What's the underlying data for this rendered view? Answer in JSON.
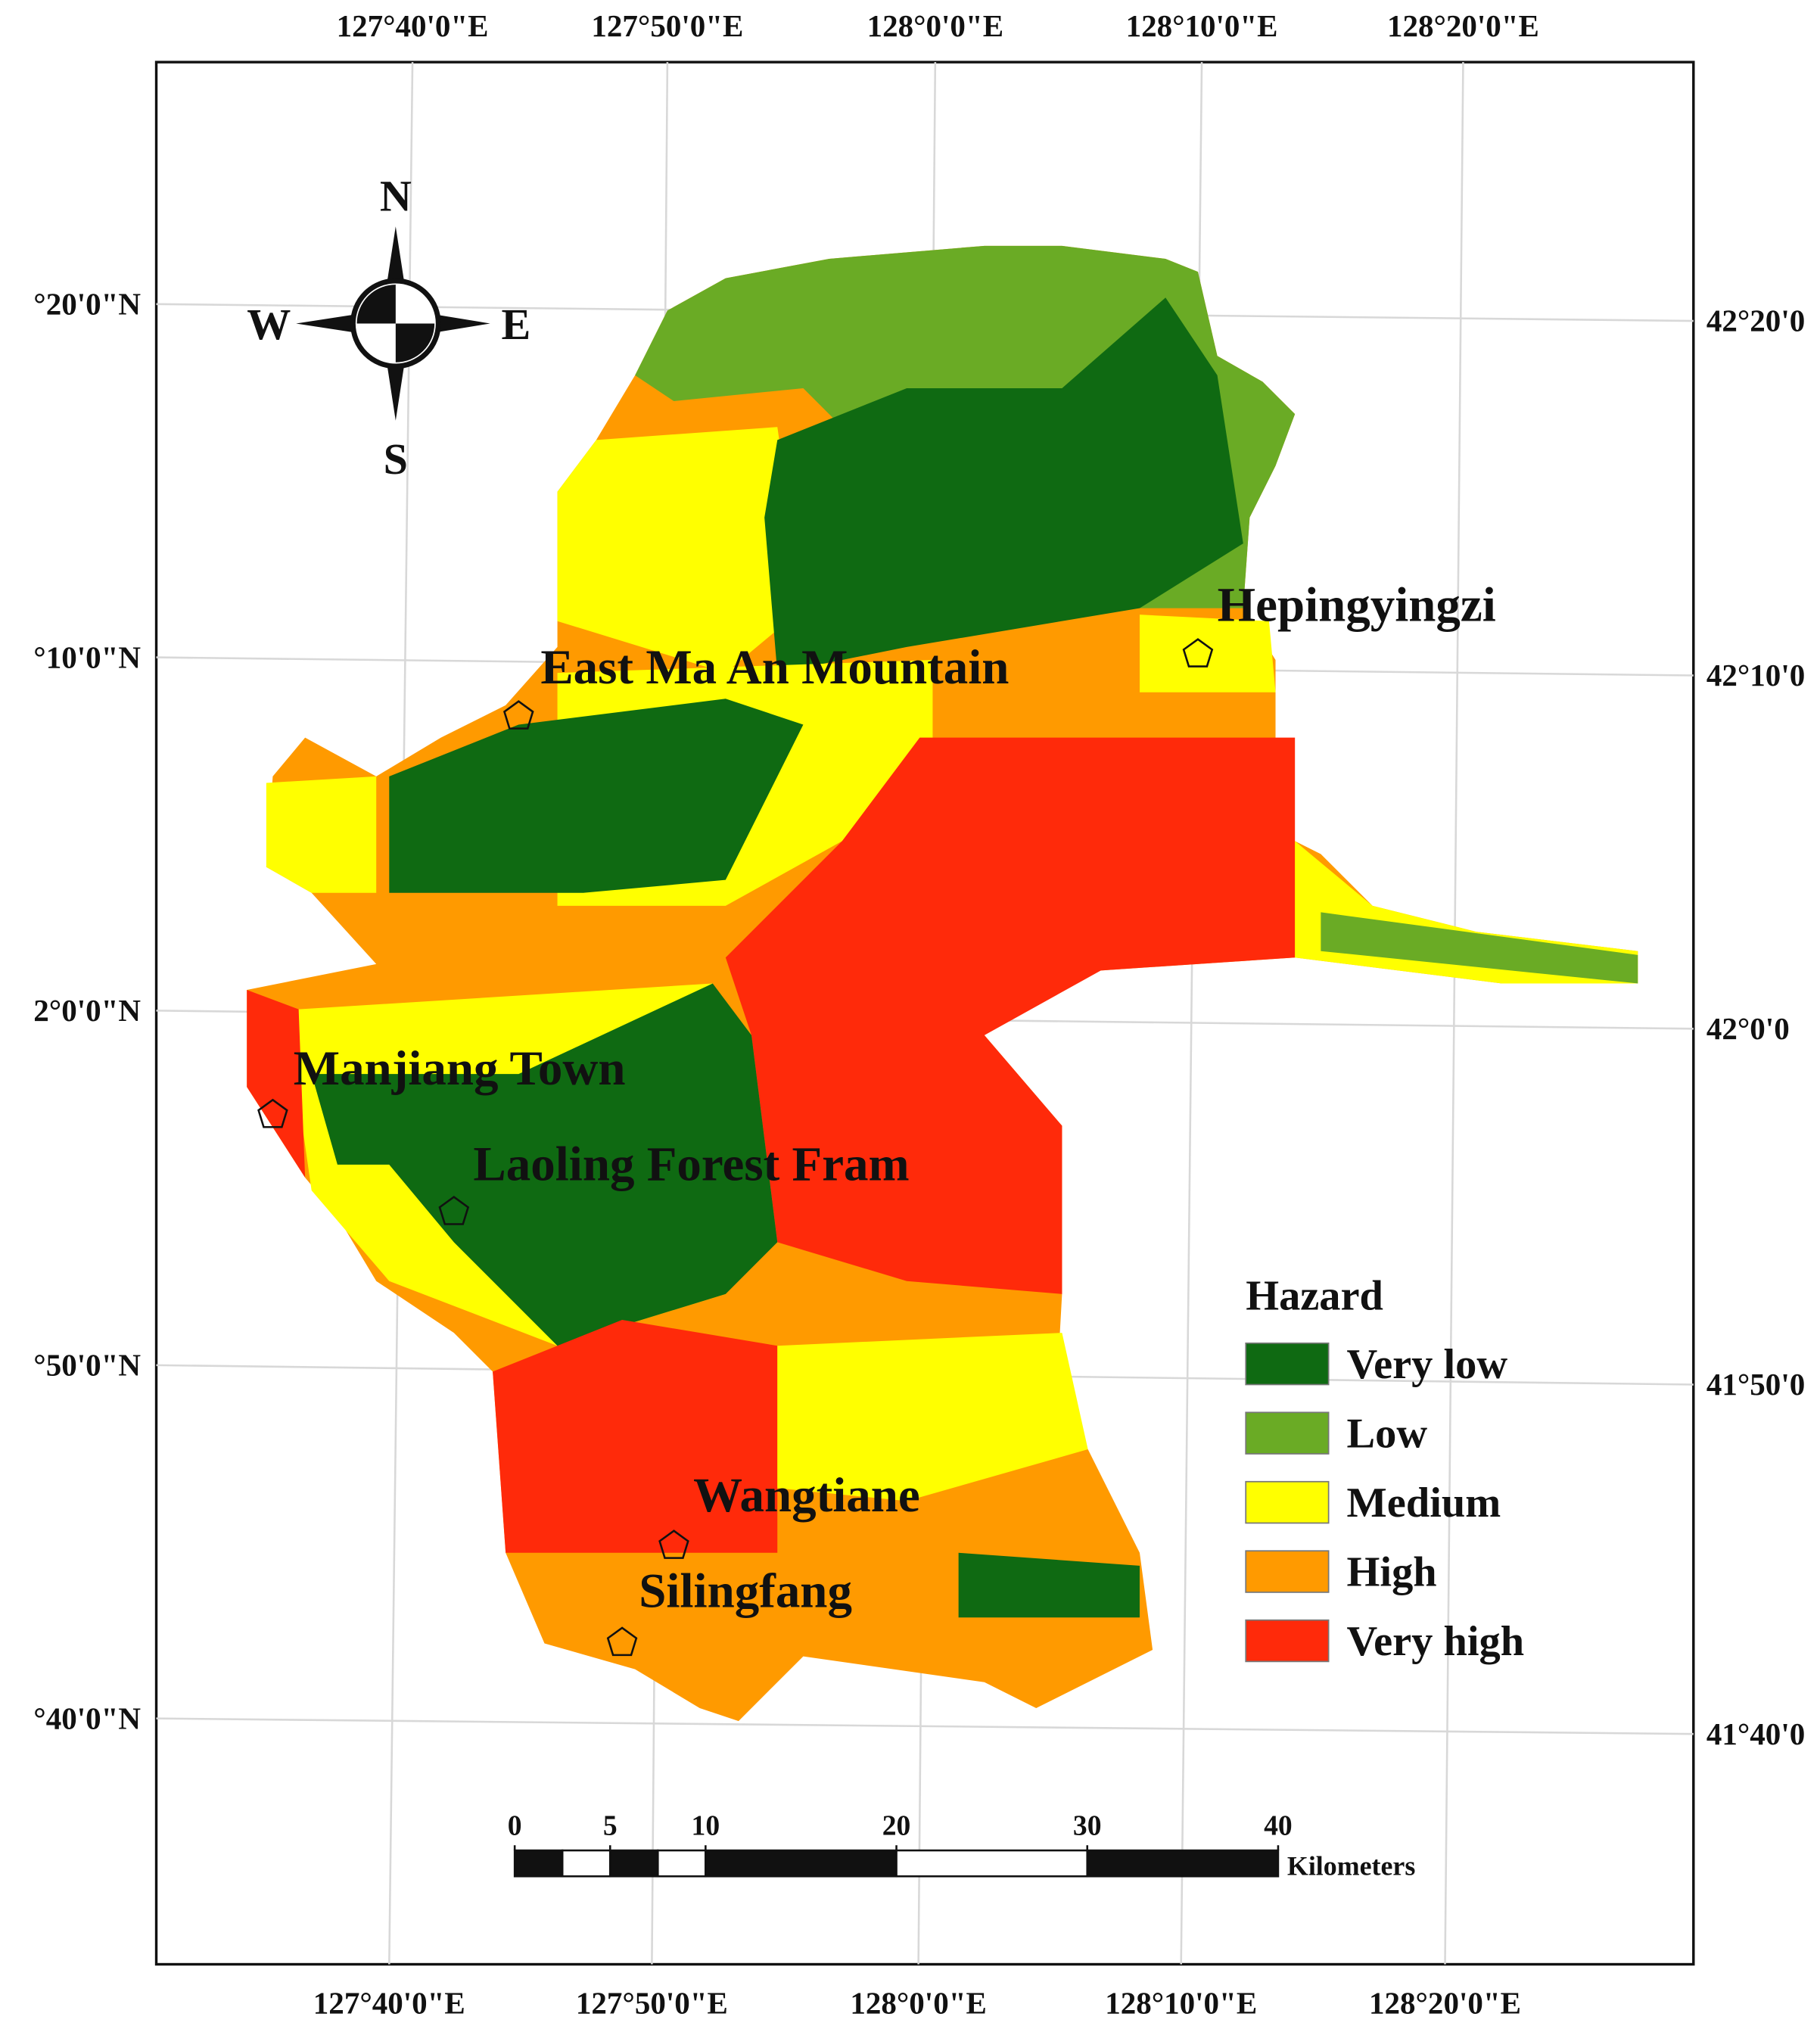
{
  "map": {
    "longitude_labels_top": [
      "127°40'0\"E",
      "127°50'0\"E",
      "128°0'0\"E",
      "128°10'0\"E",
      "128°20'0\"E"
    ],
    "longitude_labels_bottom": [
      "127°40'0\"E",
      "127°50'0\"E",
      "128°0'0\"E",
      "128°10'0\"E",
      "128°20'0\"E"
    ],
    "latitude_labels_left": [
      "°20'0\"N",
      "°10'0\"N",
      "2°0'0\"N",
      "°50'0\"N",
      "°40'0\"N"
    ],
    "latitude_labels_right": [
      "42°20'0",
      "42°10'0",
      "42°0'0",
      "41°50'0",
      "41°40'0"
    ],
    "compass": {
      "n": "N",
      "s": "S",
      "e": "E",
      "w": "W"
    },
    "places": [
      "Hepingyingzi",
      "East Ma An Mountain",
      "Manjiang Town",
      "Laoling Forest Fram",
      "Wangtiane",
      "Silingfang"
    ],
    "legend": {
      "title": "Hazard",
      "items": [
        {
          "label": "Very low",
          "color": "#0f6a12"
        },
        {
          "label": "Low",
          "color": "#6aab25"
        },
        {
          "label": "Medium",
          "color": "#ffff00"
        },
        {
          "label": "High",
          "color": "#ff9a00"
        },
        {
          "label": "Very high",
          "color": "#ff2a0a"
        }
      ]
    },
    "scale_bar": {
      "ticks": [
        0,
        5,
        10,
        20,
        30,
        40
      ],
      "unit": "Kilometers"
    }
  }
}
